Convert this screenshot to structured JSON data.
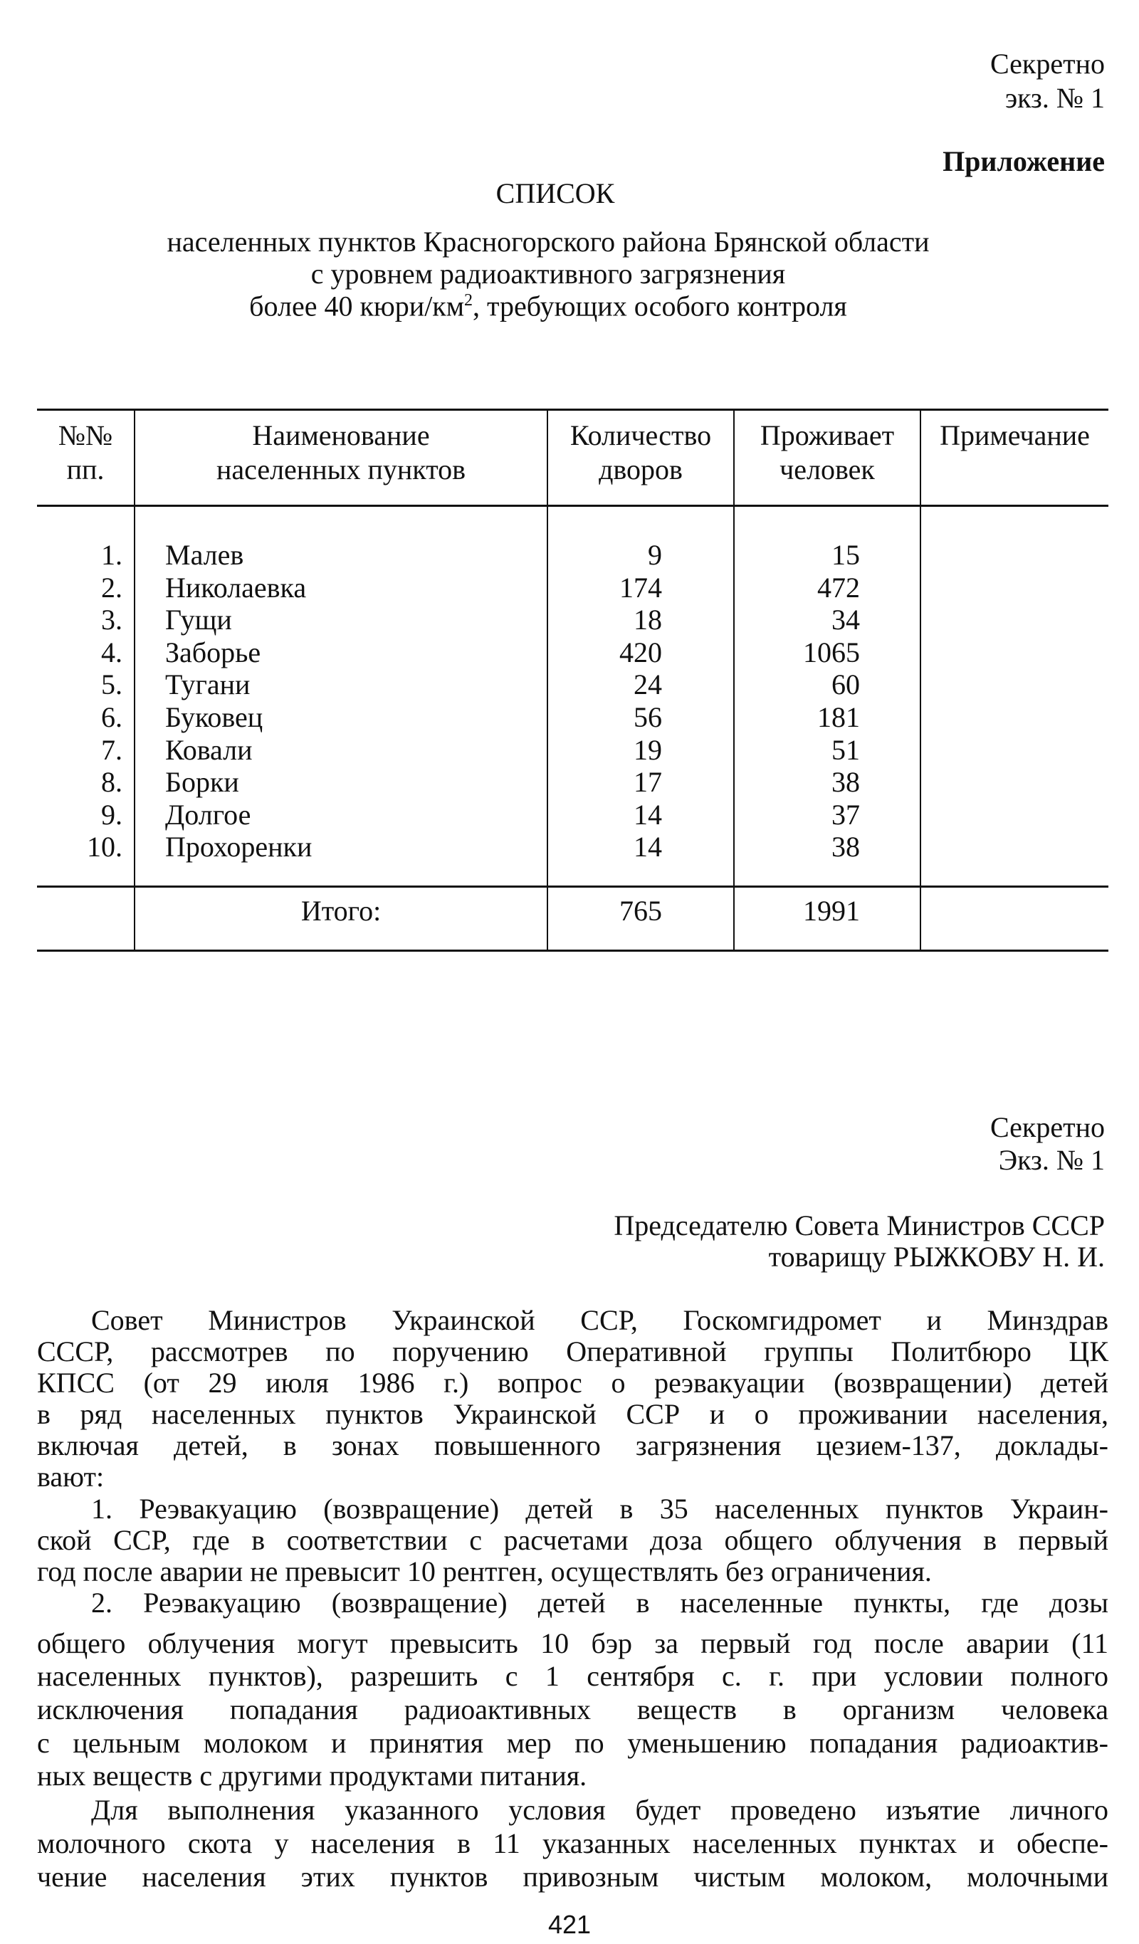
{
  "appendix": {
    "secret": "Секретно",
    "copy": "экз. № 1",
    "appendix_label": "Приложение",
    "title": "СПИСОК",
    "subtitle_lines": [
      "населенных пунктов Красногорского района Брянской области",
      "с уровнем радиоактивного загрязнения"
    ],
    "subtitle_last_pre": "более 40 кюри/км",
    "subtitle_last_sup": "2",
    "subtitle_last_post": ", требующих особого контроля"
  },
  "table": {
    "headers": {
      "num": [
        "№№",
        "пп."
      ],
      "name": [
        "Наименование",
        "населенных пунктов"
      ],
      "yards": [
        "Количество",
        "дворов"
      ],
      "people": [
        "Проживает",
        "человек"
      ],
      "note": [
        "Примечание"
      ]
    },
    "rows": [
      {
        "n": "1.",
        "name": "Малев",
        "yards": "9",
        "people": "15"
      },
      {
        "n": "2.",
        "name": "Николаевка",
        "yards": "174",
        "people": "472"
      },
      {
        "n": "3.",
        "name": "Гущи",
        "yards": "18",
        "people": "34"
      },
      {
        "n": "4.",
        "name": "Заборье",
        "yards": "420",
        "people": "1065"
      },
      {
        "n": "5.",
        "name": "Тугани",
        "yards": "24",
        "people": "60"
      },
      {
        "n": "6.",
        "name": "Буковец",
        "yards": "56",
        "people": "181"
      },
      {
        "n": "7.",
        "name": "Ковали",
        "yards": "19",
        "people": "51"
      },
      {
        "n": "8.",
        "name": "Борки",
        "yards": "17",
        "people": "38"
      },
      {
        "n": "9.",
        "name": "Долгое",
        "yards": "14",
        "people": "37"
      },
      {
        "n": "10.",
        "name": "Прохоренки",
        "yards": "14",
        "people": "38"
      }
    ],
    "total": {
      "label": "Итого:",
      "yards": "765",
      "people": "1991"
    }
  },
  "letter": {
    "secret": "Секретно",
    "copy": "Экз. № 1",
    "addressee_1": "Председателю Совета Министров СССР",
    "addressee_2": "товарищу РЫЖКОВУ Н. И.",
    "lines": [
      "Совет Министров Украинской ССР, Госкомгидромет и Минздрав",
      "СССР, рассмотрев по поручению Оперативной группы Политбюро ЦК",
      "КПСС (от 29 июля 1986 г.) вопрос о реэвакуации (возвращении) детей",
      "в ряд населенных пунктов Украинской ССР и о проживании населения,",
      "включая детей, в зонах повышенного загрязнения цезием-137, доклады-",
      "вают:",
      "1. Реэвакуацию (возвращение) детей в 35 населенных пунктов Украин-",
      "ской ССР, где в соответствии с расчетами доза общего облучения в первый",
      "год после аварии не превысит 10 рентген, осуществлять без ограничения.",
      "2. Реэвакуацию (возвращение) детей в населенные пункты, где дозы",
      "общего облучения могут превысить 10 бэр за первый год после аварии (11",
      "населенных пунктов), разрешить с 1 сентября с. г. при условии полного",
      "исключения попадания радиоактивных веществ в организм человека",
      "с цельным молоком и принятия мер по уменьшению попадания радиоактив-",
      "ных веществ с другими продуктами питания.",
      "Для выполнения указанного условия будет проведено изъятие личного",
      "молочного скота у населения в 11 указанных населенных пунктах и обеспе-",
      "чение населения этих пунктов привозным чистым молоком, молочными"
    ]
  },
  "page_number": "421"
}
